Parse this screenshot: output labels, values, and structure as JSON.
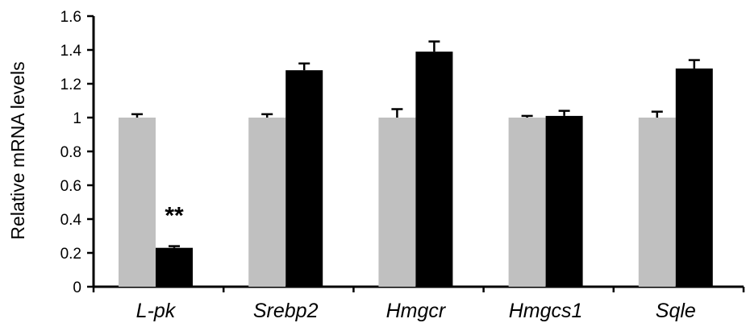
{
  "chart_data": {
    "type": "bar",
    "ylabel": "Relative mRNA levels",
    "xlabel": "",
    "ylim": [
      0,
      1.6
    ],
    "yticks": [
      "0",
      "0.2",
      "0.4",
      "0.6",
      "0.8",
      "1",
      "1.2",
      "1.4",
      "1.6"
    ],
    "categories": [
      "L-pk",
      "Srebp2",
      "Hmgcr",
      "Hmgcs1",
      "Sqle"
    ],
    "series": [
      {
        "color": "#c0c0c0",
        "values": [
          1.0,
          1.0,
          1.0,
          1.0,
          1.0
        ],
        "errors": [
          0.02,
          0.02,
          0.05,
          0.01,
          0.035
        ]
      },
      {
        "color": "#000000",
        "values": [
          0.23,
          1.28,
          1.39,
          1.01,
          1.29
        ],
        "errors": [
          0.01,
          0.04,
          0.06,
          0.03,
          0.05
        ]
      }
    ],
    "annotations": [
      {
        "category": "L-pk",
        "series": 1,
        "text": "**"
      }
    ],
    "grid": false,
    "legend": "none"
  }
}
